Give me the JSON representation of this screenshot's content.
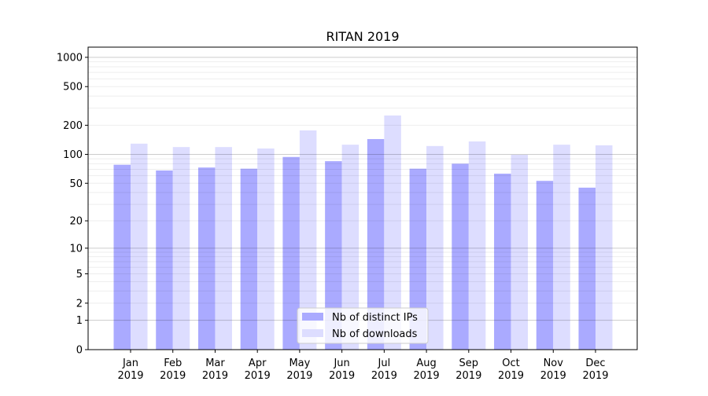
{
  "chart_data": {
    "type": "bar",
    "title": "RITAN 2019",
    "xlabel": "",
    "ylabel": "",
    "yscale": "symlog",
    "ylim": [
      0,
      1300
    ],
    "yticks": [
      0,
      1,
      2,
      5,
      10,
      20,
      50,
      100,
      200,
      500,
      1000
    ],
    "ytick_labels": [
      "0",
      "1",
      "2",
      "5",
      "10",
      "20",
      "50",
      "100",
      "200",
      "500",
      "1000"
    ],
    "categories": [
      "Jan\n2019",
      "Feb\n2019",
      "Mar\n2019",
      "Apr\n2019",
      "May\n2019",
      "Jun\n2019",
      "Jul\n2019",
      "Aug\n2019",
      "Sep\n2019",
      "Oct\n2019",
      "Nov\n2019",
      "Dec\n2019"
    ],
    "category_labels": [
      [
        "Jan",
        "2019"
      ],
      [
        "Feb",
        "2019"
      ],
      [
        "Mar",
        "2019"
      ],
      [
        "Apr",
        "2019"
      ],
      [
        "May",
        "2019"
      ],
      [
        "Jun",
        "2019"
      ],
      [
        "Jul",
        "2019"
      ],
      [
        "Aug",
        "2019"
      ],
      [
        "Sep",
        "2019"
      ],
      [
        "Oct",
        "2019"
      ],
      [
        "Nov",
        "2019"
      ],
      [
        "Dec",
        "2019"
      ]
    ],
    "series": [
      {
        "name": "Nb of distinct IPs",
        "color": "#aaaaff",
        "values": [
          78,
          68,
          73,
          71,
          94,
          85,
          144,
          71,
          80,
          63,
          53,
          45
        ]
      },
      {
        "name": "Nb of downloads",
        "color": "#ddddff",
        "values": [
          129,
          119,
          119,
          115,
          177,
          126,
          252,
          122,
          136,
          99,
          126,
          124
        ]
      }
    ],
    "grid": true,
    "legend_position": "lower-center"
  }
}
